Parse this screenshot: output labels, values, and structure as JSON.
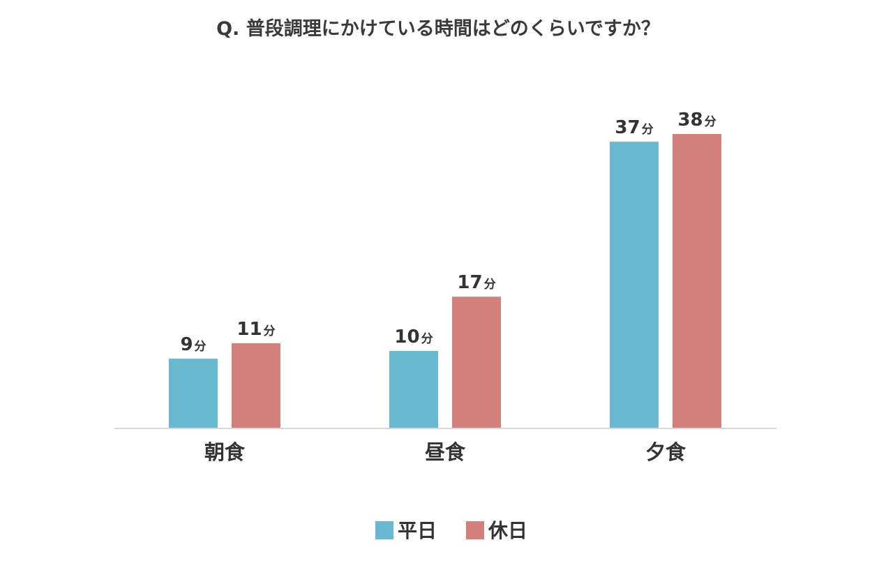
{
  "chart_data": {
    "type": "bar",
    "title": "Q. 普段調理にかけている時間はどのくらいですか？",
    "categories": [
      "朝食",
      "昼食",
      "夕食"
    ],
    "series": [
      {
        "name": "平日",
        "values": [
          9,
          10,
          37
        ],
        "color": "#68b8cf"
      },
      {
        "name": "休日",
        "values": [
          11,
          17,
          38
        ],
        "color": "#d4807d"
      }
    ],
    "value_unit": "分",
    "ylim": [
      0,
      38
    ],
    "grid": false,
    "legend_position": "bottom-center",
    "axis_color": "#d9d9d9"
  }
}
